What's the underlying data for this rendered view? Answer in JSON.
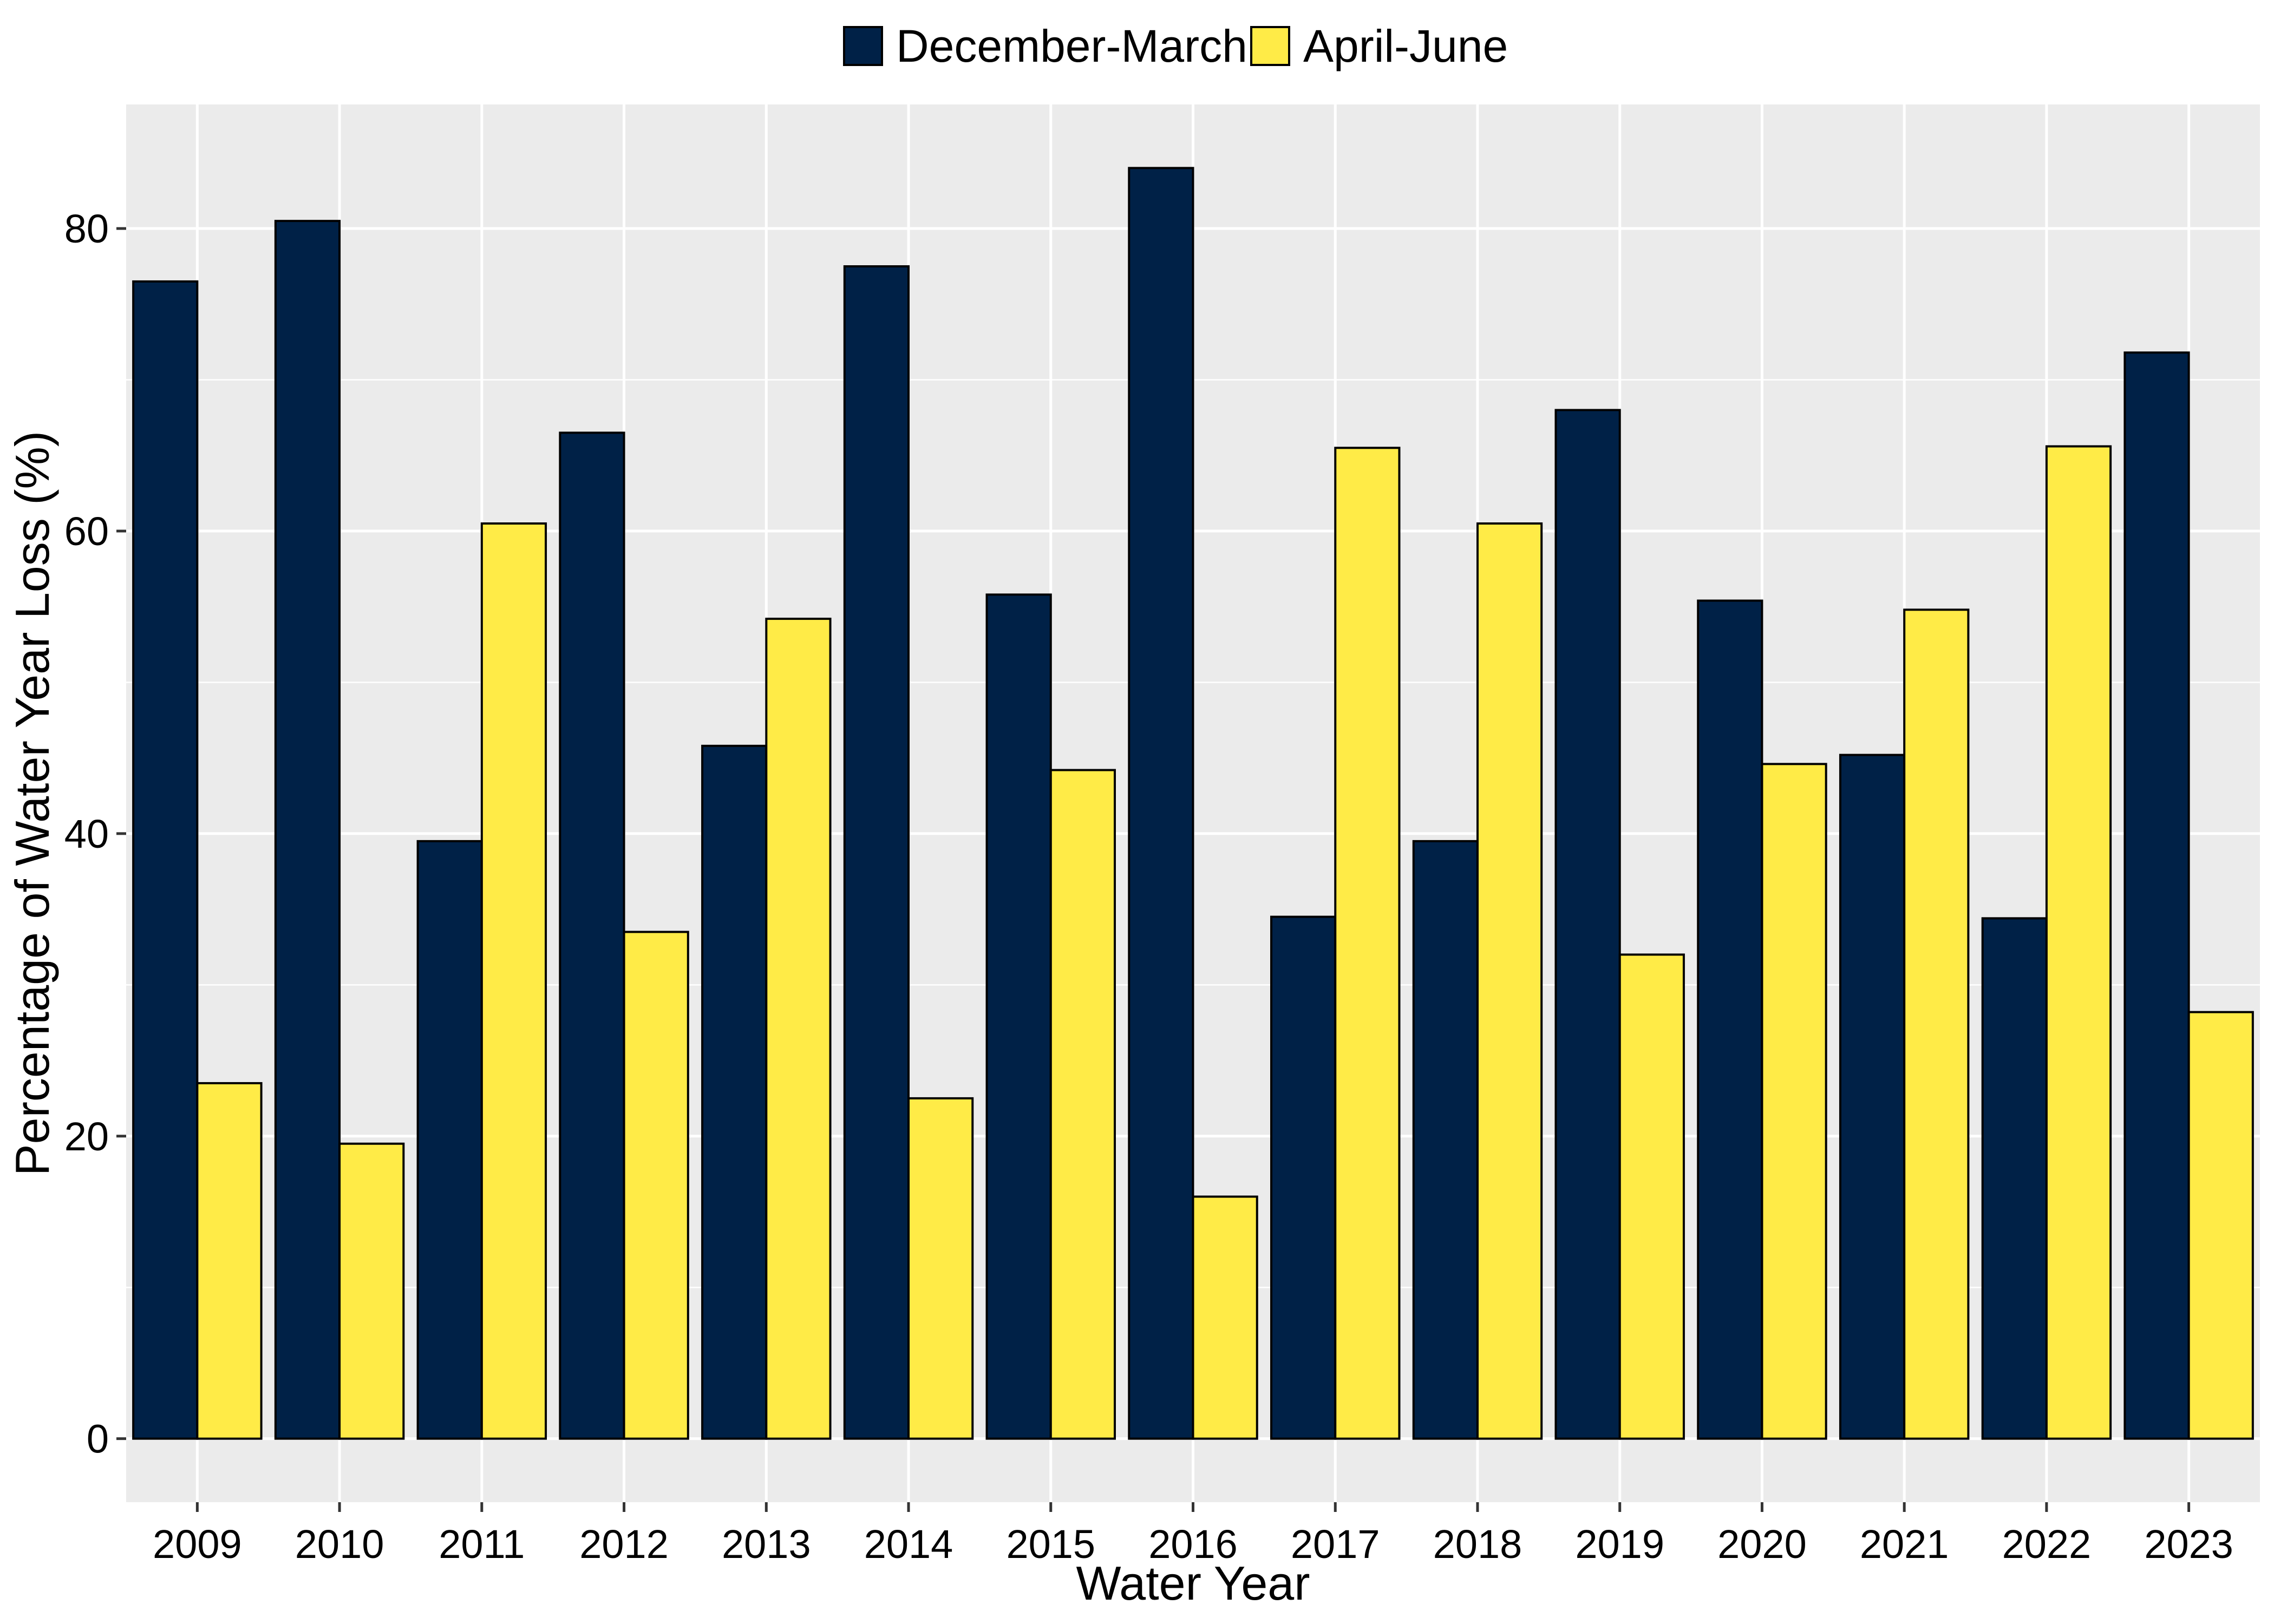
{
  "chart_data": {
    "type": "bar",
    "title": "",
    "xlabel": "Water Year",
    "ylabel": "Percentage of Water Year Loss (%)",
    "categories": [
      "2009",
      "2010",
      "2011",
      "2012",
      "2013",
      "2014",
      "2015",
      "2016",
      "2017",
      "2018",
      "2019",
      "2020",
      "2021",
      "2022",
      "2023"
    ],
    "series": [
      {
        "name": "December-March",
        "color": "#002147",
        "values": [
          76.5,
          80.5,
          39.5,
          66.5,
          45.8,
          77.5,
          55.8,
          84.0,
          34.5,
          39.5,
          68.0,
          55.4,
          45.2,
          34.4,
          71.8
        ]
      },
      {
        "name": "April-June",
        "color": "#FFEB47",
        "values": [
          23.5,
          19.5,
          60.5,
          33.5,
          54.2,
          22.5,
          44.2,
          16.0,
          65.5,
          60.5,
          32.0,
          44.6,
          54.8,
          65.6,
          28.2
        ]
      }
    ],
    "ylim": [
      -4.2,
      88.2
    ],
    "yticks": [
      0,
      20,
      40,
      60,
      80
    ],
    "grid": true,
    "legend_position": "top",
    "panel_background": "#EBEBEB",
    "grid_color": "#FFFFFF"
  }
}
